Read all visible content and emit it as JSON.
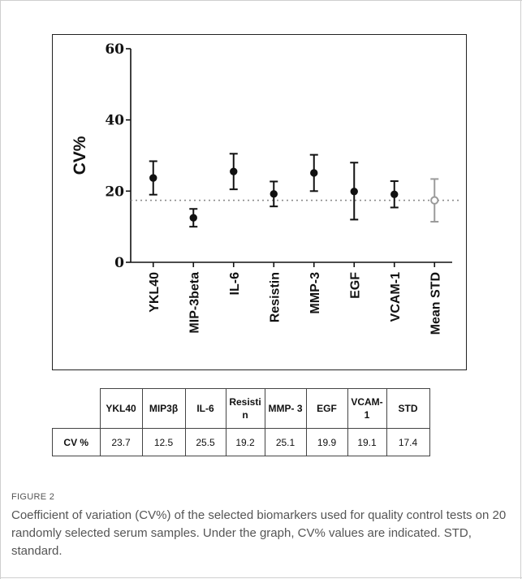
{
  "chart_data": {
    "type": "scatter",
    "ylabel": "CV%",
    "ylim": [
      0,
      60
    ],
    "yticks": [
      "0",
      "20",
      "40",
      "60"
    ],
    "categories": [
      "YKL40",
      "MIP-3beta",
      "IL-6",
      "Resistin",
      "MMP-3",
      "EGF",
      "VCAM-1",
      "Mean STD"
    ],
    "values": [
      23.7,
      12.5,
      25.5,
      19.2,
      25.1,
      19.9,
      19.1,
      17.4
    ],
    "error_low": [
      19.0,
      10.0,
      20.5,
      15.7,
      20.0,
      12.0,
      15.4,
      11.4
    ],
    "error_high": [
      28.4,
      15.0,
      30.5,
      22.7,
      30.2,
      28.0,
      22.8,
      23.4
    ],
    "reference_line": 17.4,
    "point_colors": [
      "#111111",
      "#111111",
      "#111111",
      "#111111",
      "#111111",
      "#111111",
      "#111111",
      "#9a9a9a"
    ],
    "reference_line_color": "#8c8c8c",
    "grid": false
  },
  "table": {
    "headers": [
      "",
      "YKL40",
      "MIP3β",
      "IL-6",
      "Resisti n",
      "MMP- 3",
      "EGF",
      "VCAM- 1",
      "STD"
    ],
    "row_label": "CV %",
    "row_values": [
      "23.7",
      "12.5",
      "25.5",
      "19.2",
      "25.1",
      "19.9",
      "19.1",
      "17.4"
    ]
  },
  "figure": {
    "label": "FIGURE 2",
    "caption": "Coefficient of variation (CV%) of the selected biomarkers used for quality control tests on 20 randomly selected serum samples. Under the graph, CV% values are indicated. STD, standard."
  }
}
